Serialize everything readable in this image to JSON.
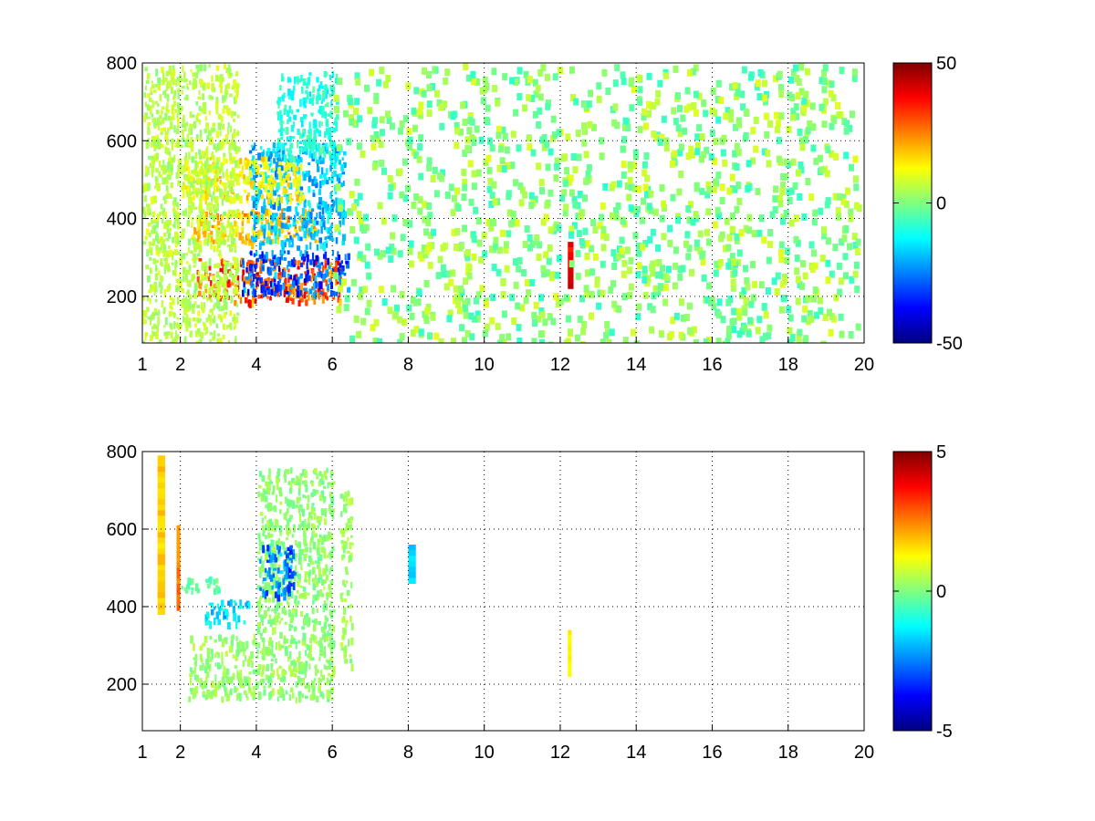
{
  "chart_data": [
    {
      "type": "heatmap",
      "title": "",
      "xlabel": "",
      "ylabel": "",
      "xlim": [
        1,
        20
      ],
      "ylim": [
        80,
        800
      ],
      "x_ticks": [
        "1",
        "2",
        "4",
        "6",
        "8",
        "10",
        "12",
        "14",
        "16",
        "18",
        "20"
      ],
      "y_ticks": [
        "200",
        "400",
        "600",
        "800"
      ],
      "colorbar": {
        "colormap": "jet",
        "min": -50,
        "max": 50,
        "ticks": [
          "-50",
          "0",
          "50"
        ]
      },
      "grid": true,
      "features": [
        {
          "shape": "band",
          "x": [
            2.4,
            6.2
          ],
          "y": [
            190,
            300
          ],
          "value": 40
        },
        {
          "shape": "band",
          "x": [
            3.6,
            6.4
          ],
          "y": [
            210,
            320
          ],
          "value": -40
        },
        {
          "shape": "band",
          "x": [
            2.3,
            5.6
          ],
          "y": [
            340,
            430
          ],
          "value": 25
        },
        {
          "shape": "band",
          "x": [
            3.8,
            6.3
          ],
          "y": [
            330,
            600
          ],
          "value": -25
        },
        {
          "shape": "band",
          "x": [
            2.0,
            5.2
          ],
          "y": [
            450,
            560
          ],
          "value": 18
        },
        {
          "shape": "band",
          "x": [
            4.5,
            6.1
          ],
          "y": [
            560,
            780
          ],
          "value": -12
        },
        {
          "shape": "band",
          "x": [
            1.0,
            3.5
          ],
          "y": [
            80,
            800
          ],
          "value": 8
        },
        {
          "shape": "streak",
          "x": [
            12.2,
            12.35
          ],
          "y": [
            220,
            340
          ],
          "value": 45
        }
      ]
    },
    {
      "type": "heatmap",
      "title": "",
      "xlabel": "",
      "ylabel": "",
      "xlim": [
        1,
        20
      ],
      "ylim": [
        80,
        800
      ],
      "x_ticks": [
        "1",
        "2",
        "4",
        "6",
        "8",
        "10",
        "12",
        "14",
        "16",
        "18",
        "20"
      ],
      "y_ticks": [
        "200",
        "400",
        "600",
        "800"
      ],
      "colorbar": {
        "colormap": "jet",
        "min": -5,
        "max": 5,
        "ticks": [
          "-5",
          "0",
          "5"
        ]
      },
      "grid": true,
      "features": [
        {
          "shape": "band",
          "x": [
            2.2,
            6.0
          ],
          "y": [
            165,
            330
          ],
          "value": 0.3
        },
        {
          "shape": "band",
          "x": [
            4.0,
            6.0
          ],
          "y": [
            330,
            760
          ],
          "value": 0.2
        },
        {
          "shape": "band",
          "x": [
            4.0,
            5.0
          ],
          "y": [
            430,
            560
          ],
          "value": -3.5
        },
        {
          "shape": "band",
          "x": [
            2.6,
            3.8
          ],
          "y": [
            360,
            420
          ],
          "value": -2
        },
        {
          "shape": "band",
          "x": [
            2.0,
            3.0
          ],
          "y": [
            440,
            480
          ],
          "value": -0.5
        },
        {
          "shape": "band",
          "x": [
            6.2,
            6.5
          ],
          "y": [
            250,
            700
          ],
          "value": 0.4
        },
        {
          "shape": "streak",
          "x": [
            12.2,
            12.3
          ],
          "y": [
            220,
            340
          ],
          "value": 1.5
        },
        {
          "shape": "streak",
          "x": [
            1.4,
            1.6
          ],
          "y": [
            380,
            790
          ],
          "value": 2
        },
        {
          "shape": "streak",
          "x": [
            1.9,
            2.0
          ],
          "y": [
            390,
            610
          ],
          "value": 3
        },
        {
          "shape": "streak",
          "x": [
            8.0,
            8.2
          ],
          "y": [
            460,
            560
          ],
          "value": -2
        }
      ]
    }
  ]
}
